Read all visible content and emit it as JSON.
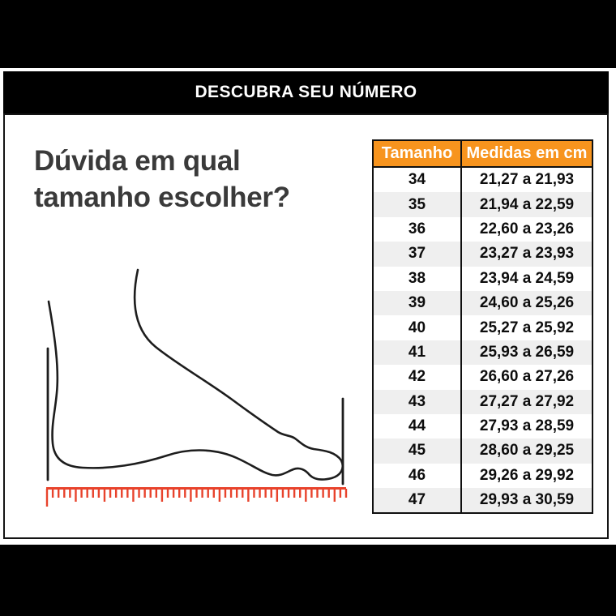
{
  "header": {
    "title": "DESCUBRA SEU NÚMERO"
  },
  "intro": {
    "heading": "Dúvida em qual tamanho escolher?"
  },
  "size_table": {
    "columns": [
      "Tamanho",
      "Medidas em cm"
    ],
    "rows": [
      {
        "size": "34",
        "range": "21,27 a 21,93"
      },
      {
        "size": "35",
        "range": "21,94 a 22,59"
      },
      {
        "size": "36",
        "range": "22,60 a 23,26"
      },
      {
        "size": "37",
        "range": "23,27 a 23,93"
      },
      {
        "size": "38",
        "range": "23,94 a 24,59"
      },
      {
        "size": "39",
        "range": "24,60 a 25,26"
      },
      {
        "size": "40",
        "range": "25,27 a 25,92"
      },
      {
        "size": "41",
        "range": "25,93 a 26,59"
      },
      {
        "size": "42",
        "range": "26,60 a 27,26"
      },
      {
        "size": "43",
        "range": "27,27 a 27,92"
      },
      {
        "size": "44",
        "range": "27,93 a 28,59"
      },
      {
        "size": "45",
        "range": "28,60 a 29,25"
      },
      {
        "size": "46",
        "range": "29,26 a 29,92"
      },
      {
        "size": "47",
        "range": "29,93 a 30,59"
      }
    ]
  },
  "illustration": {
    "name": "foot-length-measurement",
    "ruler_color": "#E8432C",
    "outline_color": "#1D1D1D",
    "ruler_tick_count": 53
  },
  "colors": {
    "banner_bg": "#000000",
    "banner_text": "#FFFFFF",
    "table_header_bg": "#F7941E",
    "table_header_text": "#FFFFFF",
    "row_stripe": "#EFEFEF",
    "heading_text": "#3A3A3A"
  }
}
